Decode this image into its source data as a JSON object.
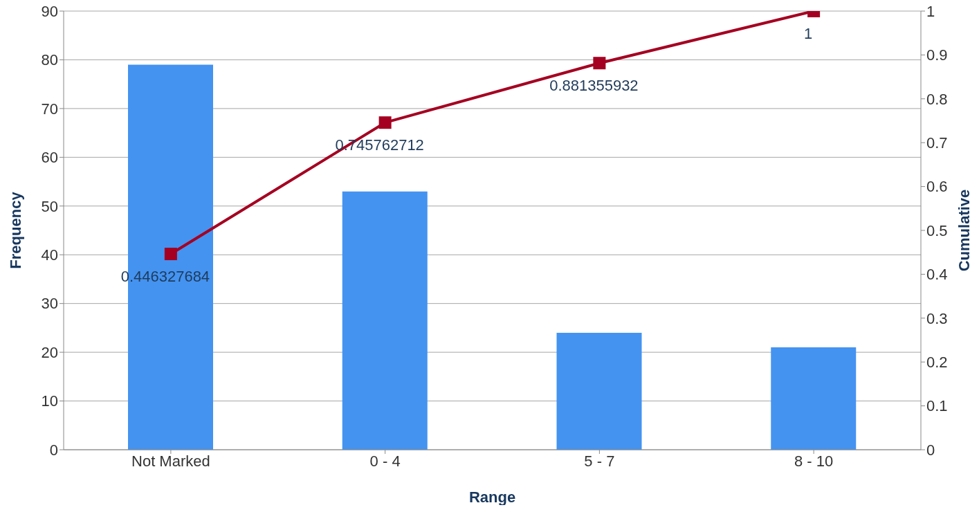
{
  "chart_data": {
    "type": "bar",
    "xlabel": "Range",
    "ylabel": "Frequency",
    "y2label": "Cumulative",
    "categories": [
      "Not Marked",
      "0 - 4",
      "5 - 7",
      "8 - 10"
    ],
    "series": [
      {
        "color": "#4493f1",
        "values": [
          79,
          53,
          24,
          21
        ]
      },
      {
        "type": "line",
        "axis": "y2",
        "color": "#a50021",
        "marker": "square",
        "values": [
          0.446327684,
          0.745762712,
          0.881355932,
          1
        ],
        "value_labels": [
          "0.446327684",
          "0.745762712",
          "0.881355932",
          "1"
        ]
      }
    ],
    "ylim": [
      0,
      90
    ],
    "yticks": [
      0,
      10,
      20,
      30,
      40,
      50,
      60,
      70,
      80,
      90
    ],
    "y2lim": [
      0,
      1
    ],
    "y2ticks": [
      0,
      0.1,
      0.2,
      0.3,
      0.4,
      0.5,
      0.6,
      0.7,
      0.8,
      0.9,
      1
    ],
    "grid": "y"
  }
}
